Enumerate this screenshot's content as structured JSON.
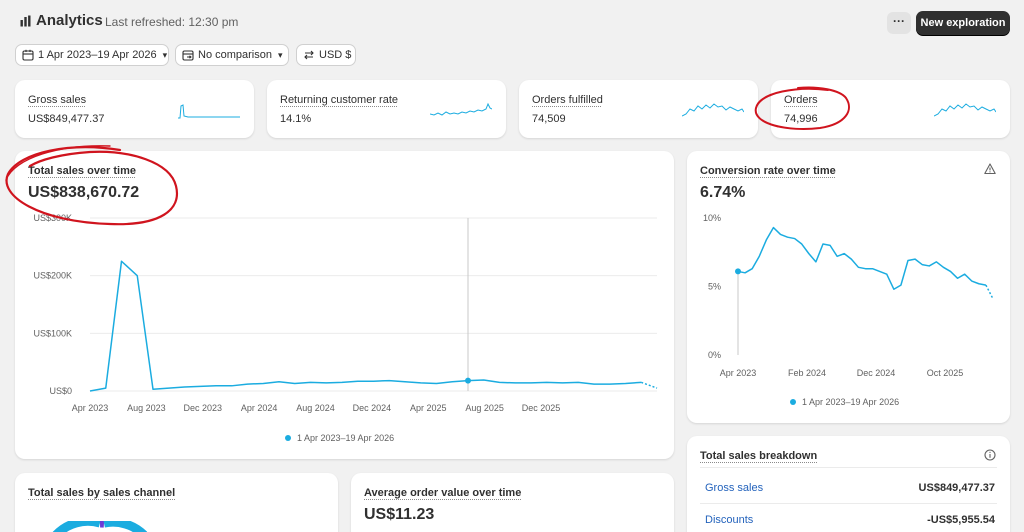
{
  "header": {
    "title": "Analytics",
    "refreshed": "Last refreshed: 12:30 pm",
    "more_label": "···",
    "new_exploration_label": "New exploration"
  },
  "filters": {
    "date_range": "1 Apr 2023–19 Apr 2026",
    "comparison": "No comparison",
    "currency": "USD $"
  },
  "metrics": [
    {
      "label": "Gross sales",
      "value": "US$849,477.37"
    },
    {
      "label": "Returning customer rate",
      "value": "14.1%"
    },
    {
      "label": "Orders fulfilled",
      "value": "74,509"
    },
    {
      "label": "Orders",
      "value": "74,996"
    }
  ],
  "total_sales": {
    "title": "Total sales over time",
    "value": "US$838,670.72",
    "legend": "1 Apr 2023–19 Apr 2026"
  },
  "conversion": {
    "title": "Conversion rate over time",
    "value": "6.74%",
    "legend": "1 Apr 2023–19 Apr 2026"
  },
  "breakdown": {
    "title": "Total sales breakdown",
    "rows": [
      {
        "label": "Gross sales",
        "value": "US$849,477.37"
      },
      {
        "label": "Discounts",
        "value": "-US$5,955.54"
      }
    ]
  },
  "channel_card": {
    "title": "Total sales by sales channel"
  },
  "aov_card": {
    "title": "Average order value over time",
    "value": "US$11.23"
  },
  "colors": {
    "accent": "#1bace0",
    "annotation": "#d0141e",
    "primary_button": "#303030"
  },
  "chart_data": [
    {
      "type": "line",
      "title": "Total sales over time",
      "y_tick_labels": [
        "US$0",
        "US$100K",
        "US$200K",
        "US$300K"
      ],
      "ylim": [
        0,
        300000
      ],
      "x_tick_labels": [
        "Apr 2023",
        "Aug 2023",
        "Dec 2023",
        "Apr 2024",
        "Aug 2024",
        "Dec 2024",
        "Apr 2025",
        "Aug 2025",
        "Dec 2025"
      ],
      "grid": true,
      "series": [
        {
          "name": "1 Apr 2023–19 Apr 2026",
          "x": [
            "2023-04",
            "2023-05",
            "2023-06",
            "2023-07",
            "2023-08",
            "2023-09",
            "2023-10",
            "2023-11",
            "2023-12",
            "2024-01",
            "2024-02",
            "2024-03",
            "2024-04",
            "2024-05",
            "2024-06",
            "2024-07",
            "2024-08",
            "2024-09",
            "2024-10",
            "2024-11",
            "2024-12",
            "2025-01",
            "2025-02",
            "2025-03",
            "2025-04",
            "2025-05",
            "2025-06",
            "2025-07",
            "2025-08",
            "2025-09",
            "2025-10",
            "2025-11",
            "2025-12",
            "2026-01",
            "2026-02",
            "2026-03",
            "2026-04"
          ],
          "values": [
            0,
            5000,
            225000,
            200000,
            3000,
            5000,
            7000,
            8000,
            9000,
            9000,
            12000,
            13000,
            16000,
            13000,
            15000,
            14000,
            15000,
            17000,
            17000,
            18000,
            16000,
            14000,
            13000,
            16000,
            18000,
            19000,
            15000,
            14000,
            14000,
            15000,
            14000,
            15000,
            12000,
            12000,
            13000,
            15000,
            5000
          ]
        }
      ]
    },
    {
      "type": "line",
      "title": "Conversion rate over time",
      "y_tick_labels": [
        "0%",
        "5%",
        "10%"
      ],
      "ylim": [
        0,
        10
      ],
      "x_tick_labels": [
        "Apr 2023",
        "Feb 2024",
        "Dec 2024",
        "Oct 2025"
      ],
      "grid": false,
      "series": [
        {
          "name": "1 Apr 2023–19 Apr 2026",
          "x": [
            "2023-04",
            "2023-05",
            "2023-06",
            "2023-07",
            "2023-08",
            "2023-09",
            "2023-10",
            "2023-11",
            "2023-12",
            "2024-01",
            "2024-02",
            "2024-03",
            "2024-04",
            "2024-05",
            "2024-06",
            "2024-07",
            "2024-08",
            "2024-09",
            "2024-10",
            "2024-11",
            "2024-12",
            "2025-01",
            "2025-02",
            "2025-03",
            "2025-04",
            "2025-05",
            "2025-06",
            "2025-07",
            "2025-08",
            "2025-09",
            "2025-10",
            "2025-11",
            "2025-12",
            "2026-01",
            "2026-02",
            "2026-03",
            "2026-04"
          ],
          "values": [
            6.1,
            6.0,
            6.3,
            7.2,
            8.4,
            9.3,
            8.8,
            8.6,
            8.5,
            8.1,
            7.4,
            6.8,
            8.1,
            8.0,
            7.2,
            7.4,
            7.0,
            6.4,
            6.3,
            6.3,
            6.1,
            5.9,
            4.8,
            5.1,
            6.9,
            7.0,
            6.6,
            6.5,
            6.8,
            6.4,
            6.1,
            5.6,
            5.9,
            5.4,
            5.2,
            5.1,
            4.1
          ]
        }
      ]
    }
  ]
}
